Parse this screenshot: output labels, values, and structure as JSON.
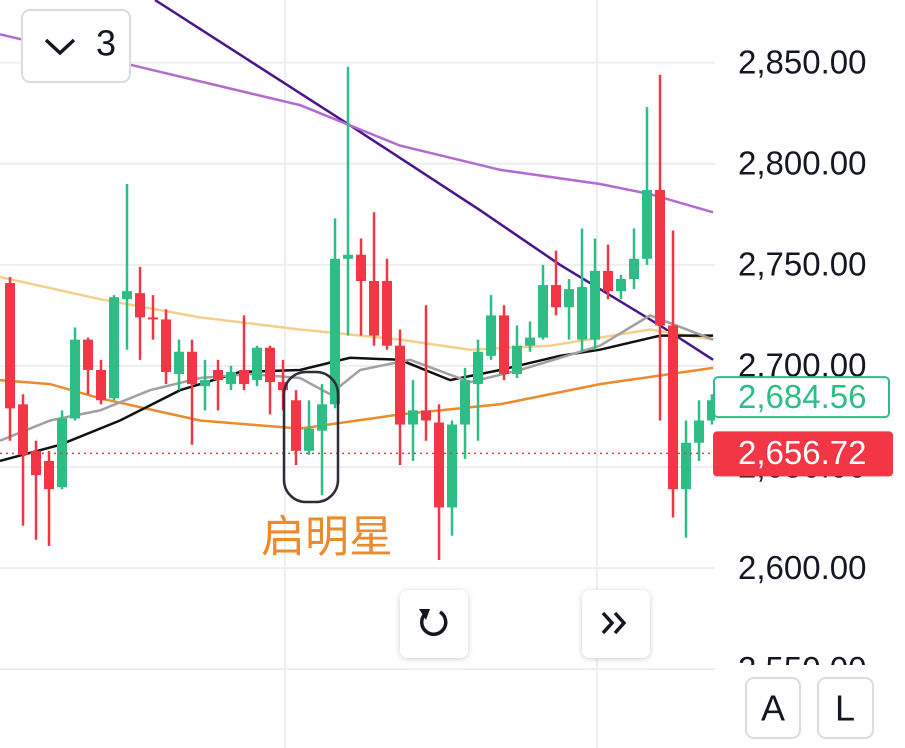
{
  "chart_data": {
    "type": "candlestick",
    "categories": [
      null,
      null,
      null,
      null,
      null,
      null,
      null,
      null,
      null,
      null,
      null,
      null,
      null,
      null,
      null,
      null,
      null,
      null,
      null,
      null,
      null,
      null,
      null,
      null,
      null,
      null,
      null,
      null,
      null,
      null,
      null,
      null,
      null,
      null,
      null,
      null,
      null,
      null,
      null,
      null,
      null,
      null,
      null,
      null,
      null,
      null,
      null,
      null,
      null,
      null,
      null,
      null,
      null,
      null,
      null
    ],
    "open": [
      2741,
      2681,
      2658,
      2653,
      2640,
      2674,
      2713,
      2698,
      2684,
      2733,
      2736,
      2724,
      2723,
      2696,
      2707,
      2690,
      2698,
      2691,
      2698,
      2693,
      2709,
      2692,
      2683,
      2658,
      2668,
      2681,
      2753,
      2755,
      2742,
      2742,
      2710,
      2671,
      2678,
      2672,
      2630,
      2671,
      2691,
      2705,
      2725,
      2696,
      2710,
      2714,
      2740,
      2729,
      2713,
      2713,
      2747,
      2737,
      2743,
      2753,
      2787,
      2720,
      2639,
      2662,
      2673
    ],
    "high": [
      2744,
      2686,
      2663,
      2658,
      2678,
      2719,
      2714,
      2703,
      2735,
      2790,
      2749,
      2735,
      2728,
      2713,
      2713,
      2703,
      2703,
      2700,
      2725,
      2710,
      2710,
      2703,
      2688,
      2683,
      2691,
      2773,
      2848,
      2763,
      2776,
      2753,
      2718,
      2693,
      2730,
      2681,
      2673,
      2699,
      2713,
      2735,
      2730,
      2720,
      2722,
      2750,
      2757,
      2743,
      2768,
      2763,
      2760,
      2745,
      2768,
      2828,
      2844,
      2767,
      2673,
      2683,
      2686
    ],
    "low": [
      2663,
      2621,
      2614,
      2611,
      2639,
      2673,
      2686,
      2681,
      2683,
      2708,
      2703,
      2713,
      2691,
      2688,
      2661,
      2678,
      2678,
      2688,
      2688,
      2690,
      2676,
      2678,
      2651,
      2656,
      2636,
      2679,
      2715,
      2715,
      2710,
      2708,
      2651,
      2653,
      2663,
      2604,
      2616,
      2654,
      2663,
      2703,
      2693,
      2694,
      2707,
      2713,
      2725,
      2713,
      2707,
      2708,
      2733,
      2733,
      2738,
      2750,
      2673,
      2625,
      2615,
      2653,
      2671
    ],
    "close": [
      2679,
      2656,
      2646,
      2639,
      2674,
      2713,
      2698,
      2683,
      2734,
      2737,
      2724,
      2723,
      2697,
      2707,
      2691,
      2693,
      2693,
      2697,
      2691,
      2709,
      2692,
      2688,
      2658,
      2669,
      2681,
      2753,
      2755,
      2742,
      2715,
      2710,
      2671,
      2678,
      2673,
      2630,
      2671,
      2693,
      2707,
      2725,
      2696,
      2710,
      2714,
      2740,
      2729,
      2738,
      2739,
      2747,
      2737,
      2743,
      2753,
      2787,
      2720,
      2639,
      2662,
      2673,
      2683
    ],
    "up_color": "#2ebd85",
    "down_color": "#f23645",
    "lines": [
      {
        "color": "#4a148c",
        "x": [
          11.15,
          26.15,
          36.15,
          42.31,
          50,
          54.08
        ],
        "values": [
          2881,
          2819,
          2777,
          2750,
          2720,
          2703
        ]
      },
      {
        "color": "#b36ad0",
        "x": [
          -0.77,
          9.23,
          22.31,
          30,
          37.69,
          45.38,
          49.23,
          54.08
        ],
        "values": [
          2864,
          2849,
          2829,
          2809,
          2797,
          2790,
          2785,
          2776
        ]
      },
      {
        "color": "#f5cf8a",
        "x": [
          -0.77,
          6.92,
          14.62,
          22.31,
          30,
          35.38,
          41.54,
          49.23,
          54.08
        ],
        "values": [
          2744,
          2733,
          2724,
          2718,
          2713,
          2708,
          2710,
          2718,
          2713
        ]
      },
      {
        "color": "#ec8a2c",
        "x": [
          -0.77,
          3.08,
          6.92,
          14.62,
          22.31,
          30,
          37.69,
          45.38,
          54.08
        ],
        "values": [
          2693,
          2691,
          2684,
          2673,
          2669,
          2676,
          2681,
          2691,
          2699
        ]
      },
      {
        "color": "#111111",
        "x": [
          -0.77,
          3.85,
          8.46,
          13.08,
          17.69,
          22.31,
          26.15,
          30,
          33.85,
          37.69,
          42.31,
          45.38,
          50,
          54.08
        ],
        "values": [
          2653,
          2661,
          2673,
          2688,
          2697,
          2698,
          2704,
          2703,
          2693,
          2698,
          2705,
          2708,
          2715,
          2715
        ]
      },
      {
        "color": "#a0a0a0",
        "x": [
          -0.77,
          3.08,
          6.92,
          10.77,
          14.62,
          18.46,
          22.31,
          24.62,
          26.92,
          30.77,
          35.38,
          39.23,
          45.38,
          49.23,
          54.08
        ],
        "values": [
          2663,
          2673,
          2678,
          2688,
          2694,
          2696,
          2694,
          2686,
          2698,
          2703,
          2692,
          2698,
          2710,
          2725,
          2713
        ]
      }
    ],
    "xlim": [
      -0.77,
      54.23
    ],
    "ylim": [
      2511,
      2881
    ],
    "yticks": [
      {
        "value": 2550,
        "label": "2,550.00"
      },
      {
        "value": 2600,
        "label": "2,600.00"
      },
      {
        "value": 2650,
        "label": "2,650.00"
      },
      {
        "value": 2700,
        "label": "2,700.00"
      },
      {
        "value": 2750,
        "label": "2,750.00"
      },
      {
        "value": 2800,
        "label": "2,800.00"
      },
      {
        "value": 2850,
        "label": "2,850.00"
      }
    ],
    "grid": true,
    "price_labels": [
      {
        "value": 2684.56,
        "label": "2,684.56",
        "color": "#2ebd85",
        "style": "outline"
      },
      {
        "value": 2656.72,
        "label": "2,656.72",
        "color": "#f23645",
        "style": "filled"
      }
    ],
    "annotation": "启明星"
  },
  "controls": {
    "collapse": "3",
    "buttons": [
      "A",
      "L"
    ]
  }
}
